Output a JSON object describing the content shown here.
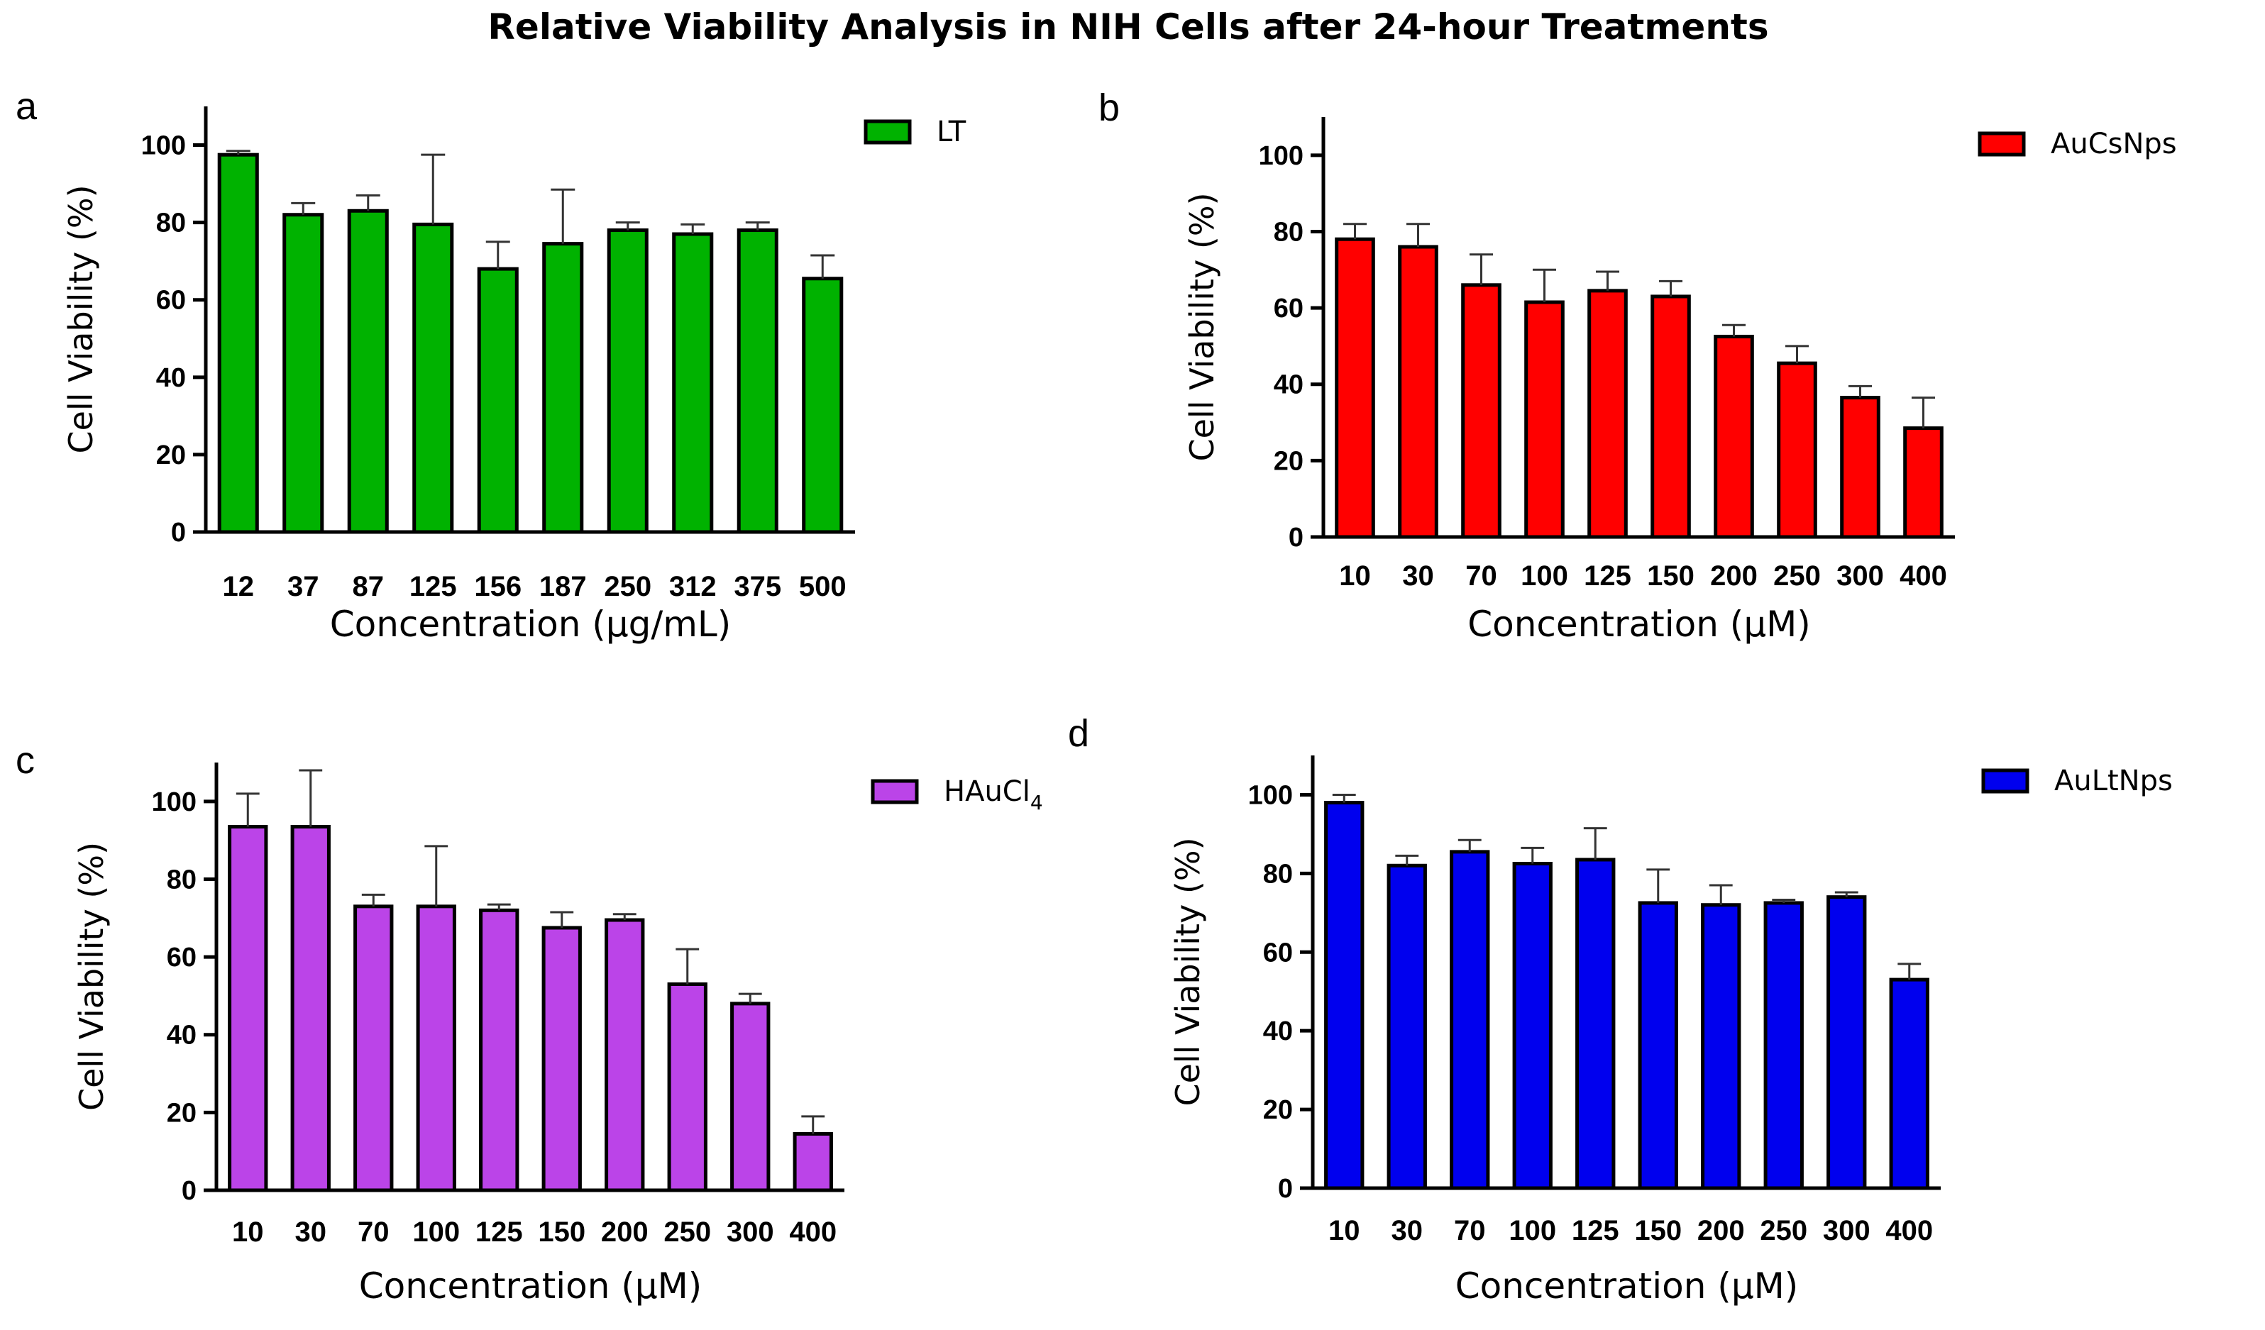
{
  "figure_title": "Relative Viability Analysis in NIH Cells after 24-hour Treatments",
  "chart_data": [
    {
      "panel": "a",
      "type": "bar",
      "title": "",
      "xlabel": "Concentration (µg/mL)",
      "ylabel": "Cell Viability (%)",
      "ylim": [
        0,
        110
      ],
      "yticks": [
        0,
        20,
        40,
        60,
        80,
        100
      ],
      "grid": false,
      "legend_position": "top-right",
      "categories": [
        "12",
        "37",
        "87",
        "125",
        "156",
        "187",
        "250",
        "312",
        "375",
        "500"
      ],
      "series": [
        {
          "name": "LT",
          "color": "#00b200",
          "values": [
            97.5,
            82,
            83,
            79.5,
            68,
            74.5,
            78,
            77,
            78,
            65.5
          ],
          "error": [
            1,
            3,
            4,
            18,
            7,
            14,
            2,
            2.5,
            2,
            6
          ]
        }
      ]
    },
    {
      "panel": "b",
      "type": "bar",
      "title": "",
      "xlabel": "Concentration (µM)",
      "ylabel": "Cell Viability (%)",
      "ylim": [
        0,
        110
      ],
      "yticks": [
        0,
        20,
        40,
        60,
        80,
        100
      ],
      "grid": false,
      "legend_position": "top-right",
      "categories": [
        "10",
        "30",
        "70",
        "100",
        "125",
        "150",
        "200",
        "250",
        "300",
        "400"
      ],
      "series": [
        {
          "name": "AuCsNps",
          "color": "#ff0000",
          "values": [
            78,
            76,
            66,
            61.5,
            64.5,
            63,
            52.5,
            45.5,
            36.5,
            28.5
          ],
          "error": [
            4,
            6,
            8,
            8.5,
            5,
            4,
            3,
            4.5,
            3,
            8
          ]
        }
      ]
    },
    {
      "panel": "c",
      "type": "bar",
      "title": "",
      "xlabel": "Concentration (µM)",
      "ylabel": "Cell Viability (%)",
      "ylim": [
        0,
        110
      ],
      "yticks": [
        0,
        20,
        40,
        60,
        80,
        100
      ],
      "grid": false,
      "legend_position": "top-right",
      "categories": [
        "10",
        "30",
        "70",
        "100",
        "125",
        "150",
        "200",
        "250",
        "300",
        "400"
      ],
      "series": [
        {
          "name": "HAuCl",
          "name_subscript": "4",
          "color": "#bb44e8",
          "values": [
            93.5,
            93.5,
            73,
            73,
            72,
            67.5,
            69.5,
            53,
            48,
            14.5
          ],
          "error": [
            8.5,
            14.5,
            3,
            15.5,
            1.5,
            4,
            1.5,
            9,
            2.5,
            4.5
          ]
        }
      ]
    },
    {
      "panel": "d",
      "type": "bar",
      "title": "",
      "xlabel": "Concentration (µM)",
      "ylabel": "Cell Viability (%)",
      "ylim": [
        0,
        110
      ],
      "yticks": [
        0,
        20,
        40,
        60,
        80,
        100
      ],
      "grid": false,
      "legend_position": "top-right",
      "categories": [
        "10",
        "30",
        "70",
        "100",
        "125",
        "150",
        "200",
        "250",
        "300",
        "400"
      ],
      "series": [
        {
          "name": "AuLtNps",
          "color": "#0000ee",
          "values": [
            98,
            82,
            85.5,
            82.5,
            83.5,
            72.5,
            72,
            72.5,
            74,
            53
          ],
          "error": [
            2,
            2.5,
            3,
            4,
            8,
            8.5,
            5,
            0.8,
            1.2,
            4
          ]
        }
      ]
    }
  ]
}
